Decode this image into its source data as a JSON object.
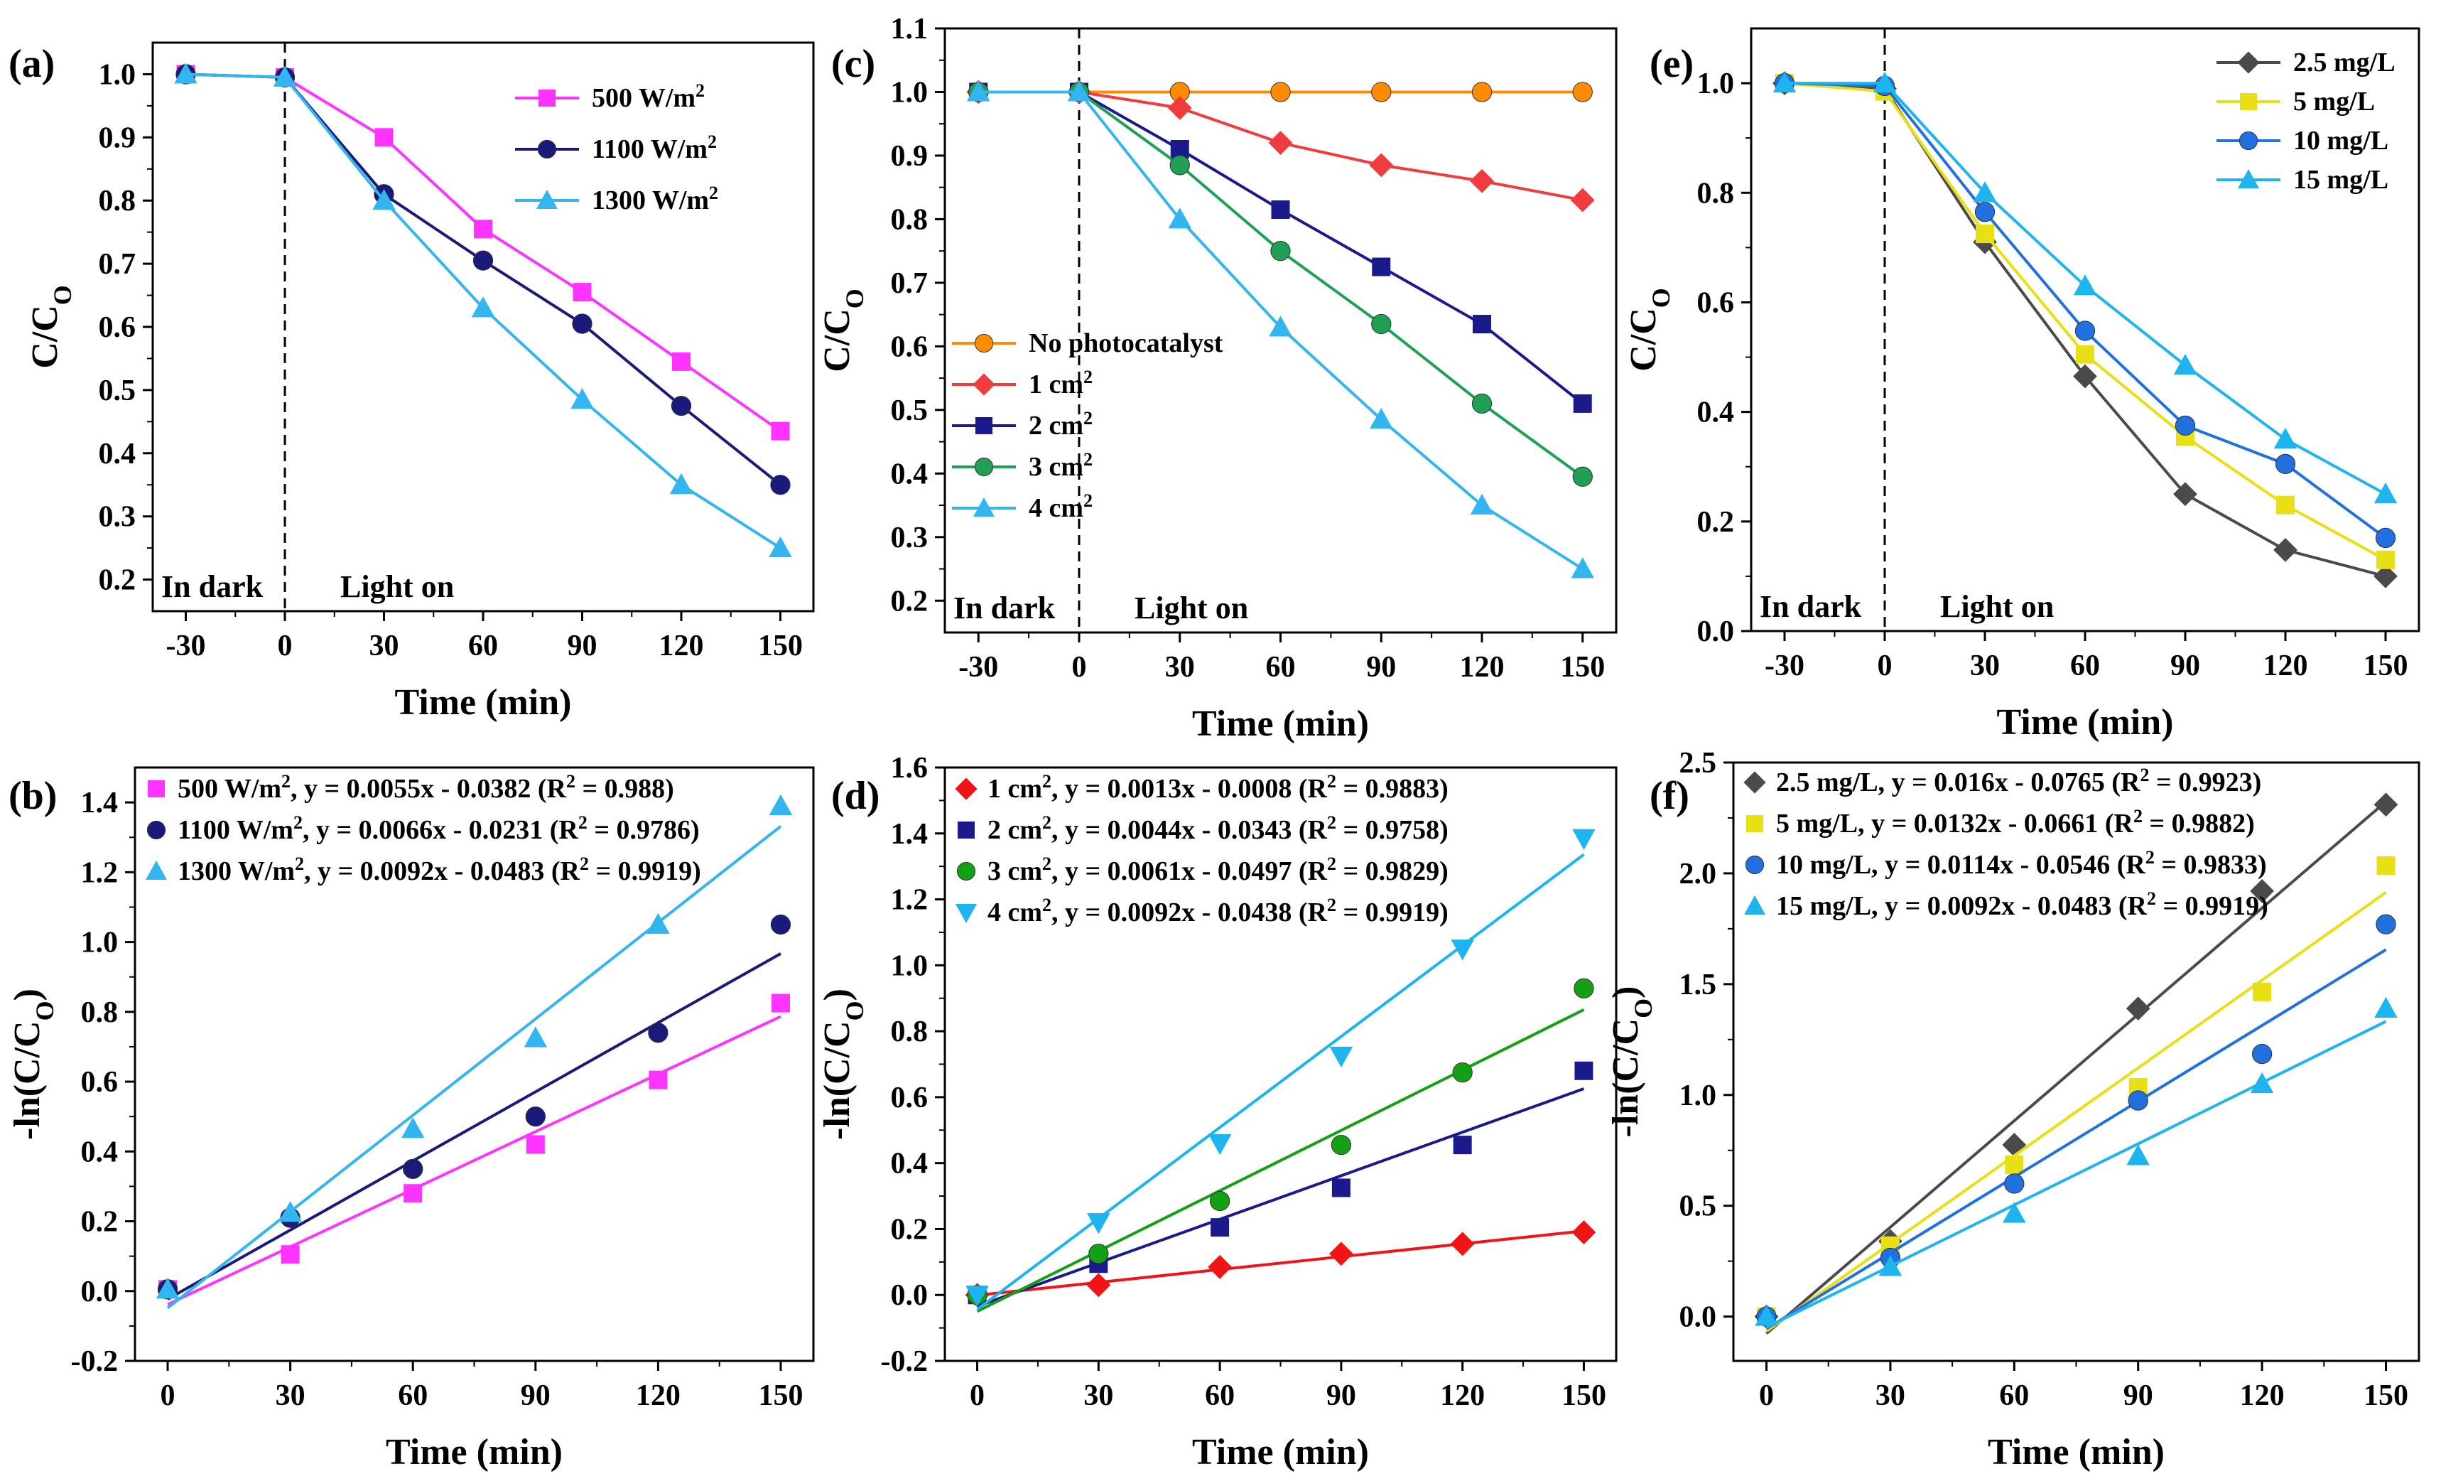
{
  "chart_data": [
    {
      "panel": "(a)",
      "type": "line",
      "xlabel": "Time (min)",
      "ylabel": "C/C",
      "ylabel_sub": "O",
      "xlim": [
        -40,
        160
      ],
      "ylim": [
        0.15,
        1.05
      ],
      "xticks": [
        -30,
        0,
        30,
        60,
        90,
        120,
        150
      ],
      "yticks": [
        0.2,
        0.3,
        0.4,
        0.5,
        0.6,
        0.7,
        0.8,
        0.9,
        1.0
      ],
      "ytick_labels": [
        "0.2",
        "0.3",
        "0.4",
        "0.5",
        "0.6",
        "0.7",
        "0.8",
        "0.9",
        "1.0"
      ],
      "dark_line_x": 0,
      "annotations": [
        "In dark",
        "Light on"
      ],
      "legend_position": "top-right",
      "x": [
        -30,
        0,
        30,
        60,
        90,
        120,
        150
      ],
      "series": [
        {
          "name": "500 W/m",
          "sup": "2",
          "color": "#ff33ff",
          "marker": "square",
          "values": [
            1.0,
            0.995,
            0.9,
            0.755,
            0.655,
            0.545,
            0.435
          ]
        },
        {
          "name": "1100 W/m",
          "sup": "2",
          "color": "#1a1a7a",
          "marker": "circle",
          "values": [
            1.0,
            0.995,
            0.81,
            0.705,
            0.605,
            0.475,
            0.35
          ]
        },
        {
          "name": "1300 W/m",
          "sup": "2",
          "color": "#33b5f0",
          "marker": "triangle",
          "values": [
            1.0,
            0.995,
            0.8,
            0.63,
            0.485,
            0.35,
            0.25
          ]
        }
      ]
    },
    {
      "panel": "(b)",
      "type": "scatter",
      "xlabel": "Time (min)",
      "ylabel": "-ln(C/C",
      "ylabel_sub": "O",
      "ylabel_end": ")",
      "xlim": [
        -8,
        158
      ],
      "ylim": [
        -0.2,
        1.5
      ],
      "xticks": [
        0,
        30,
        60,
        90,
        120,
        150
      ],
      "yticks": [
        -0.2,
        0.0,
        0.2,
        0.4,
        0.6,
        0.8,
        1.0,
        1.2,
        1.4
      ],
      "ytick_labels": [
        "-0.2",
        "0.0",
        "0.2",
        "0.4",
        "0.6",
        "0.8",
        "1.0",
        "1.2",
        "1.4"
      ],
      "legend_position": "top-left",
      "x": [
        0,
        30,
        60,
        90,
        120,
        150
      ],
      "series": [
        {
          "name": "500 W/m",
          "sup": "2",
          "eq": ",    y = 0.0055x - 0.0382 (R",
          "eq_sup": "2",
          "eq_end": " = 0.988)",
          "color": "#ff33ff",
          "marker": "square",
          "values": [
            0.005,
            0.105,
            0.28,
            0.42,
            0.605,
            0.825
          ],
          "fit": [
            0.0055,
            -0.0382
          ]
        },
        {
          "name": "1100 W/m",
          "sup": "2",
          "eq": ",  y = 0.0066x - 0.0231 (R",
          "eq_sup": "2",
          "eq_end": " = 0.9786)",
          "color": "#1a1a7a",
          "marker": "circle",
          "values": [
            0.005,
            0.21,
            0.35,
            0.5,
            0.74,
            1.05
          ],
          "fit": [
            0.0066,
            -0.0231
          ]
        },
        {
          "name": "1300 W/m",
          "sup": "2",
          "eq": ",  y = 0.0092x - 0.0483 (R",
          "eq_sup": "2",
          "eq_end": " = 0.9919)",
          "color": "#33b5f0",
          "marker": "triangle",
          "values": [
            0.005,
            0.225,
            0.465,
            0.725,
            1.05,
            1.39
          ],
          "fit": [
            0.0092,
            -0.0483
          ]
        }
      ]
    },
    {
      "panel": "(c)",
      "type": "line",
      "xlabel": "Time (min)",
      "ylabel": "C/C",
      "ylabel_sub": "O",
      "xlim": [
        -40,
        160
      ],
      "ylim": [
        0.15,
        1.1
      ],
      "xticks": [
        -30,
        0,
        30,
        60,
        90,
        120,
        150
      ],
      "yticks": [
        0.2,
        0.3,
        0.4,
        0.5,
        0.6,
        0.7,
        0.8,
        0.9,
        1.0,
        1.1
      ],
      "ytick_labels": [
        "0.2",
        "0.3",
        "0.4",
        "0.5",
        "0.6",
        "0.7",
        "0.8",
        "0.9",
        "1.0",
        "1.1"
      ],
      "dark_line_x": 0,
      "annotations": [
        "In dark",
        "Light on"
      ],
      "legend_position": "bottom-left",
      "x": [
        -30,
        0,
        30,
        60,
        90,
        120,
        150
      ],
      "series": [
        {
          "name": "No photocatalyst",
          "sup": "",
          "color": "#ff8c00",
          "marker": "circle",
          "values": [
            1.0,
            1.0,
            1.0,
            1.0,
            1.0,
            1.0,
            1.0
          ]
        },
        {
          "name": "1 cm",
          "sup": "2",
          "color": "#f03c3c",
          "marker": "diamond",
          "values": [
            1.0,
            1.0,
            0.975,
            0.92,
            0.885,
            0.86,
            0.83
          ]
        },
        {
          "name": "2 cm",
          "sup": "2",
          "color": "#1a1a8c",
          "marker": "square",
          "values": [
            1.0,
            1.0,
            0.91,
            0.815,
            0.725,
            0.635,
            0.51
          ]
        },
        {
          "name": "3 cm",
          "sup": "2",
          "color": "#1fa055",
          "marker": "circle",
          "values": [
            1.0,
            1.0,
            0.885,
            0.75,
            0.635,
            0.51,
            0.395
          ]
        },
        {
          "name": "4 cm",
          "sup": "2",
          "color": "#33b5f0",
          "marker": "triangle",
          "values": [
            1.0,
            1.0,
            0.8,
            0.63,
            0.485,
            0.35,
            0.25
          ]
        }
      ]
    },
    {
      "panel": "(d)",
      "type": "scatter",
      "xlabel": "Time (min)",
      "ylabel": "-ln(C/C",
      "ylabel_sub": "O",
      "ylabel_end": ")",
      "xlim": [
        -8,
        158
      ],
      "ylim": [
        -0.2,
        1.6
      ],
      "xticks": [
        0,
        30,
        60,
        90,
        120,
        150
      ],
      "yticks": [
        -0.2,
        0.0,
        0.2,
        0.4,
        0.6,
        0.8,
        1.0,
        1.2,
        1.4,
        1.6
      ],
      "ytick_labels": [
        "-0.2",
        "0.0",
        "0.2",
        "0.4",
        "0.6",
        "0.8",
        "1.0",
        "1.2",
        "1.4",
        "1.6"
      ],
      "legend_position": "top-left",
      "x": [
        0,
        30,
        60,
        90,
        120,
        150
      ],
      "series": [
        {
          "name": "1 cm",
          "sup": "2",
          "eq": ",    y = 0.0013x - 0.0008 (R",
          "eq_sup": "2",
          "eq_end": " = 0.9883)",
          "color": "#f01414",
          "marker": "diamond",
          "values": [
            0.0,
            0.03,
            0.085,
            0.125,
            0.155,
            0.19
          ],
          "fit": [
            0.0013,
            -0.0008
          ]
        },
        {
          "name": "2 cm",
          "sup": "2",
          "eq": ",    y = 0.0044x - 0.0343 (R",
          "eq_sup": "2",
          "eq_end": " = 0.9758)",
          "color": "#1a1a8c",
          "marker": "square",
          "values": [
            0.0,
            0.095,
            0.205,
            0.325,
            0.455,
            0.68
          ],
          "fit": [
            0.0044,
            -0.0343
          ]
        },
        {
          "name": "3 cm",
          "sup": "2",
          "eq": ",    y = 0.0061x - 0.0497 (R",
          "eq_sup": "2",
          "eq_end": " = 0.9829)",
          "color": "#14a014",
          "marker": "circle",
          "values": [
            0.0,
            0.125,
            0.285,
            0.455,
            0.675,
            0.93
          ],
          "fit": [
            0.0061,
            -0.0497
          ]
        },
        {
          "name": "4 cm",
          "sup": "2",
          "eq": ",    y = 0.0092x - 0.0438 (R",
          "eq_sup": "2",
          "eq_end": " = 0.9919)",
          "color": "#1eb4f0",
          "marker": "triangle-down",
          "values": [
            0.0,
            0.22,
            0.46,
            0.725,
            1.05,
            1.385
          ],
          "fit": [
            0.0092,
            -0.0438
          ]
        }
      ]
    },
    {
      "panel": "(e)",
      "type": "line",
      "xlabel": "Time (min)",
      "ylabel": "C/C",
      "ylabel_sub": "O",
      "xlim": [
        -40,
        160
      ],
      "ylim": [
        0.0,
        1.1
      ],
      "xticks": [
        -30,
        0,
        30,
        60,
        90,
        120,
        150
      ],
      "yticks": [
        0.0,
        0.2,
        0.4,
        0.6,
        0.8,
        1.0
      ],
      "ytick_labels": [
        "0.0",
        "0.2",
        "0.4",
        "0.6",
        "0.8",
        "1.0"
      ],
      "dark_line_x": 0,
      "annotations": [
        "In dark",
        "Light on"
      ],
      "legend_position": "top-right",
      "x": [
        -30,
        0,
        30,
        60,
        90,
        120,
        150
      ],
      "series": [
        {
          "name": "2.5 mg/L",
          "sup": "",
          "color": "#4a4a4a",
          "marker": "diamond",
          "values": [
            1.0,
            0.99,
            0.71,
            0.465,
            0.25,
            0.148,
            0.1
          ]
        },
        {
          "name": "5 mg/L",
          "sup": "",
          "color": "#e8e014",
          "marker": "square",
          "values": [
            1.0,
            0.985,
            0.725,
            0.505,
            0.355,
            0.23,
            0.13
          ]
        },
        {
          "name": "10 mg/L",
          "sup": "",
          "color": "#2070e0",
          "marker": "circle",
          "values": [
            1.0,
            0.995,
            0.765,
            0.548,
            0.375,
            0.305,
            0.17
          ]
        },
        {
          "name": "15 mg/L",
          "sup": "",
          "color": "#1eb4f0",
          "marker": "triangle",
          "values": [
            1.0,
            1.0,
            0.8,
            0.63,
            0.485,
            0.35,
            0.25
          ]
        }
      ]
    },
    {
      "panel": "(f)",
      "type": "scatter",
      "xlabel": "Time (min)",
      "ylabel": "-ln(C/C",
      "ylabel_sub": "O",
      "ylabel_end": ")",
      "xlim": [
        -8,
        158
      ],
      "ylim": [
        -0.2,
        2.5
      ],
      "xticks": [
        0,
        30,
        60,
        90,
        120,
        150
      ],
      "yticks": [
        0.0,
        0.5,
        1.0,
        1.5,
        2.0,
        2.5
      ],
      "ytick_labels": [
        "0.0",
        "0.5",
        "1.0",
        "1.5",
        "2.0",
        "2.5"
      ],
      "legend_position": "top-left",
      "x": [
        0,
        30,
        60,
        90,
        120,
        150
      ],
      "series": [
        {
          "name": "2.5 mg/L,",
          "sup": "",
          "eq": " y = 0.016x - 0.0765 (R",
          "eq_sup": "2",
          "eq_end": " = 0.9923)",
          "color": "#4a4a4a",
          "marker": "diamond",
          "values": [
            0.0,
            0.34,
            0.775,
            1.39,
            1.92,
            2.31
          ],
          "fit": [
            0.016,
            -0.0765
          ]
        },
        {
          "name": "5 mg/L,",
          "sup": "",
          "eq": "    y = 0.0132x - 0.0661 (R",
          "eq_sup": "2",
          "eq_end": " = 0.9882)",
          "color": "#e8e014",
          "marker": "square",
          "values": [
            0.0,
            0.32,
            0.685,
            1.035,
            1.465,
            2.035
          ],
          "fit": [
            0.0132,
            -0.0661
          ]
        },
        {
          "name": "10 mg/L,",
          "sup": "",
          "eq": "  y = 0.0114x - 0.0546 (R",
          "eq_sup": "2",
          "eq_end": " = 0.9833)",
          "color": "#2070e0",
          "marker": "circle",
          "values": [
            0.0,
            0.265,
            0.6,
            0.975,
            1.185,
            1.77
          ],
          "fit": [
            0.0114,
            -0.0546
          ]
        },
        {
          "name": "15 mg/L,",
          "sup": "",
          "eq": "  y = 0.0092x - 0.0483 (R",
          "eq_sup": "2",
          "eq_end": " = 0.9919)",
          "color": "#1eb4f0",
          "marker": "triangle",
          "values": [
            0.0,
            0.225,
            0.465,
            0.725,
            1.05,
            1.39
          ],
          "fit": [
            0.0092,
            -0.0483
          ]
        }
      ]
    }
  ]
}
